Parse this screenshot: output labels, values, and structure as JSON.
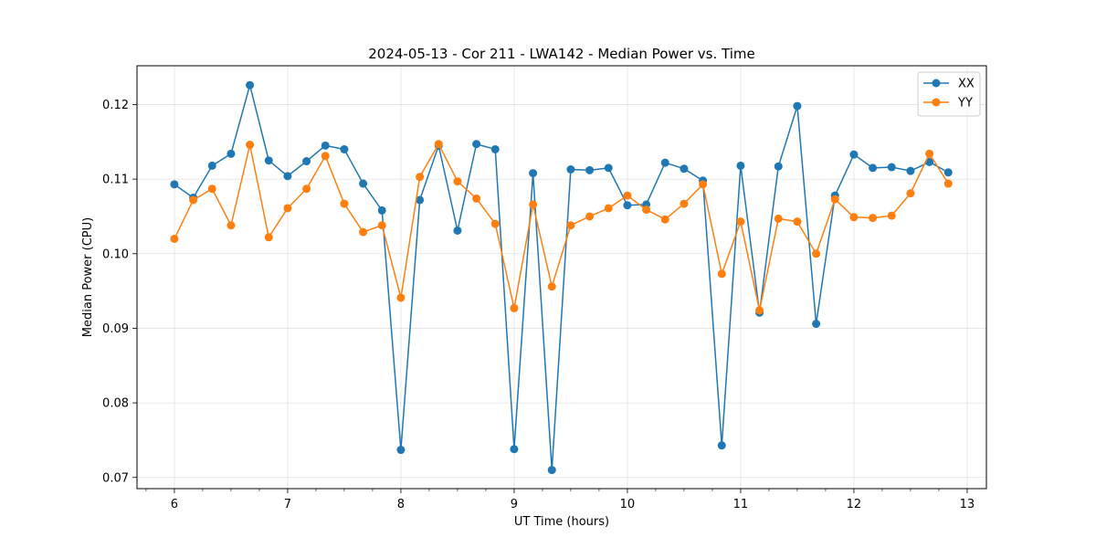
{
  "chart_data": {
    "type": "line",
    "title": "2024-05-13 - Cor 211 - LWA142 - Median Power vs. Time",
    "xlabel": "UT Time (hours)",
    "ylabel": "Median Power (CPU)",
    "xlim": [
      5.67,
      13.17
    ],
    "ylim": [
      0.0685,
      0.1252
    ],
    "x_ticks": [
      6,
      7,
      8,
      9,
      10,
      11,
      12,
      13
    ],
    "x_tick_labels": [
      "6",
      "7",
      "8",
      "9",
      "10",
      "11",
      "12",
      "13"
    ],
    "x_minor_step": 0.25,
    "y_ticks": [
      0.07,
      0.08,
      0.09,
      0.1,
      0.11,
      0.12
    ],
    "y_tick_labels": [
      "0.07",
      "0.08",
      "0.09",
      "0.10",
      "0.11",
      "0.12"
    ],
    "grid": true,
    "legend_position": "top-right",
    "x": [
      6.0,
      6.1667,
      6.3333,
      6.5,
      6.6667,
      6.8333,
      7.0,
      7.1667,
      7.3333,
      7.5,
      7.6667,
      7.8333,
      8.0,
      8.1667,
      8.3333,
      8.5,
      8.6667,
      8.8333,
      9.0,
      9.1667,
      9.3333,
      9.5,
      9.6667,
      9.8333,
      10.0,
      10.1667,
      10.3333,
      10.5,
      10.6667,
      10.8333,
      11.0,
      11.1667,
      11.3333,
      11.5,
      11.6667,
      11.8333,
      12.0,
      12.1667,
      12.3333,
      12.5,
      12.6667,
      12.8333
    ],
    "series": [
      {
        "name": "XX",
        "color": "#1f77b4",
        "values": [
          0.1093,
          0.1075,
          0.1118,
          0.1134,
          0.1226,
          0.1125,
          0.1104,
          0.1124,
          0.1145,
          0.114,
          0.1094,
          0.1058,
          0.0737,
          0.1072,
          0.1145,
          0.1031,
          0.1147,
          0.114,
          0.0738,
          0.1108,
          0.071,
          0.1113,
          0.1112,
          0.1115,
          0.1065,
          0.1066,
          0.1122,
          0.1114,
          0.1098,
          0.0743,
          0.1118,
          0.0921,
          0.1117,
          0.1198,
          0.0906,
          0.1078,
          0.1133,
          0.1115,
          0.1116,
          0.1111,
          0.1123,
          0.1109
        ]
      },
      {
        "name": "YY",
        "color": "#ff7f0e",
        "values": [
          0.102,
          0.1072,
          0.1087,
          0.1038,
          0.1146,
          0.1022,
          0.1061,
          0.1087,
          0.1131,
          0.1067,
          0.1029,
          0.1038,
          0.0941,
          0.1103,
          0.1147,
          0.1097,
          0.1074,
          0.104,
          0.0927,
          0.1066,
          0.0956,
          0.1038,
          0.105,
          0.1061,
          0.1078,
          0.1059,
          0.1046,
          0.1067,
          0.1093,
          0.0973,
          0.1043,
          0.0924,
          0.1047,
          0.1043,
          0.1,
          0.1073,
          0.1049,
          0.1048,
          0.1051,
          0.1081,
          0.1134,
          0.1094
        ]
      }
    ]
  }
}
